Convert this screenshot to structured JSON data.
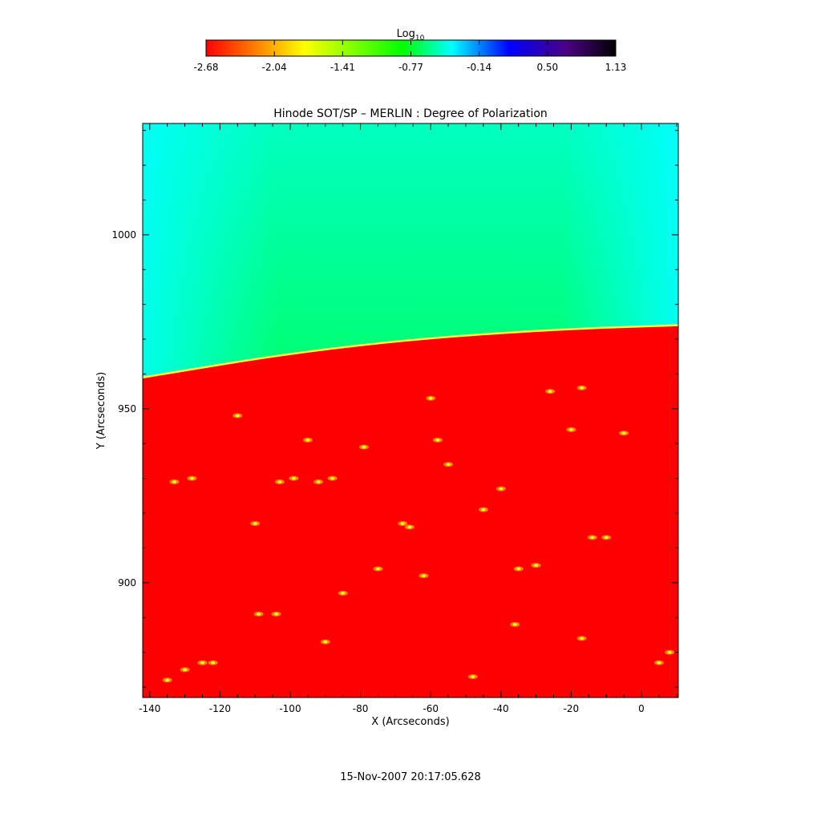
{
  "chart_data": {
    "type": "heatmap",
    "title": "Hinode SOT/SP – MERLIN : Degree of Polarization",
    "xlabel": "X (Arcseconds)",
    "ylabel": "Y (Arcseconds)",
    "xlim": [
      -142,
      10.5
    ],
    "ylim": [
      867,
      1032
    ],
    "xticks": [
      -140,
      -120,
      -100,
      -80,
      -60,
      -40,
      -20,
      0
    ],
    "yticks": [
      900,
      950,
      1000
    ],
    "colorbar": {
      "label_main": "Log",
      "label_sub": "10",
      "min": -2.68,
      "max": 1.13,
      "ticks": [
        "-2.68",
        "-2.04",
        "-1.41",
        "-0.77",
        "-0.14",
        "0.50",
        "1.13"
      ],
      "colors": [
        "#ff0000",
        "#ff7f00",
        "#ffff00",
        "#7fff00",
        "#00ff00",
        "#00ffff",
        "#0000ff",
        "#4b0082",
        "#000000"
      ]
    },
    "limb": [
      {
        "x": -142,
        "y": 959
      },
      {
        "x": -100,
        "y": 966
      },
      {
        "x": -60,
        "y": 970.5
      },
      {
        "x": -20,
        "y": 973
      },
      {
        "x": 10.5,
        "y": 974
      }
    ],
    "regions": {
      "disk": {
        "log_value": -2.68,
        "color": "#ff0000"
      },
      "off_limb_near": {
        "log_value": -0.95,
        "color": "#00ff00"
      },
      "off_limb_far": {
        "log_value": -0.6,
        "color": "#00ffff"
      },
      "limb_edge": {
        "log_value": -1.9,
        "color": "#ffff00"
      }
    },
    "features": [
      {
        "x": -135,
        "y": 872
      },
      {
        "x": -130,
        "y": 875
      },
      {
        "x": -125,
        "y": 877
      },
      {
        "x": -122,
        "y": 877
      },
      {
        "x": -133,
        "y": 929
      },
      {
        "x": -128,
        "y": 930
      },
      {
        "x": -103,
        "y": 929
      },
      {
        "x": -99,
        "y": 930
      },
      {
        "x": -92,
        "y": 929
      },
      {
        "x": -88,
        "y": 930
      },
      {
        "x": -68,
        "y": 917
      },
      {
        "x": -66,
        "y": 916
      },
      {
        "x": -60,
        "y": 953
      },
      {
        "x": -58,
        "y": 941
      },
      {
        "x": -26,
        "y": 955
      },
      {
        "x": -17,
        "y": 956
      },
      {
        "x": -14,
        "y": 913
      },
      {
        "x": -10,
        "y": 913
      },
      {
        "x": -45,
        "y": 921
      },
      {
        "x": -40,
        "y": 927
      },
      {
        "x": -109,
        "y": 891
      },
      {
        "x": -104,
        "y": 891
      },
      {
        "x": -90,
        "y": 883
      },
      {
        "x": -62,
        "y": 902
      },
      {
        "x": -35,
        "y": 904
      },
      {
        "x": -30,
        "y": 905
      },
      {
        "x": -17,
        "y": 884
      },
      {
        "x": 8,
        "y": 880
      },
      {
        "x": 5,
        "y": 877
      },
      {
        "x": -115,
        "y": 948
      },
      {
        "x": -95,
        "y": 941
      },
      {
        "x": -79,
        "y": 939
      },
      {
        "x": -55,
        "y": 934
      },
      {
        "x": -5,
        "y": 943
      },
      {
        "x": -20,
        "y": 944
      },
      {
        "x": -110,
        "y": 917
      },
      {
        "x": -75,
        "y": 904
      },
      {
        "x": -48,
        "y": 873
      },
      {
        "x": -36,
        "y": 888
      },
      {
        "x": -85,
        "y": 897
      }
    ]
  },
  "footer": {
    "timestamp": "15-Nov-2007 20:17:05.628"
  }
}
